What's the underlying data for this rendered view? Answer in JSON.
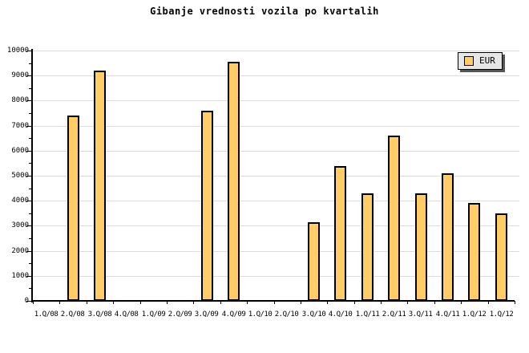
{
  "title": "Gibanje vrednosti vozila po kvartalih",
  "legend": {
    "label": "EUR",
    "swatch_color": "#FFCC66"
  },
  "colors": {
    "background": "#FFFFFF",
    "bar_fill": "#FFCC66",
    "bar_border": "#000000",
    "gridline": "#DCDCDC",
    "axis": "#000000",
    "legend_background": "#E6E6E6",
    "legend_shadow": "#555555",
    "text": "#000000"
  },
  "chart_data": {
    "type": "bar",
    "title": "Gibanje vrednosti vozila po kvartalih",
    "xlabel": "",
    "ylabel": "",
    "series_name": "EUR",
    "categories": [
      "1.Q/08",
      "2.Q/08",
      "3.Q/08",
      "4.Q/08",
      "1.Q/09",
      "2.Q/09",
      "3.Q/09",
      "4.Q/09",
      "1.Q/10",
      "2.Q/10",
      "3.Q/10",
      "4.Q/10",
      "1.Q/11",
      "2.Q/11",
      "3.Q/11",
      "4.Q/11",
      "1.Q/12",
      "1.Q/12"
    ],
    "values": [
      null,
      7400,
      9200,
      null,
      null,
      null,
      7600,
      9550,
      null,
      null,
      3150,
      5400,
      4300,
      6600,
      4300,
      5100,
      3900,
      3500
    ],
    "ylim": [
      0,
      10000
    ],
    "ytick_major": 1000,
    "ytick_minor": 500,
    "y_tick_labels": [
      "0",
      "1000",
      "2000",
      "3000",
      "4000",
      "5000",
      "6000",
      "7000",
      "8000",
      "9000",
      "10000"
    ],
    "grid": "horizontal-major",
    "legend_position": "top-right"
  }
}
